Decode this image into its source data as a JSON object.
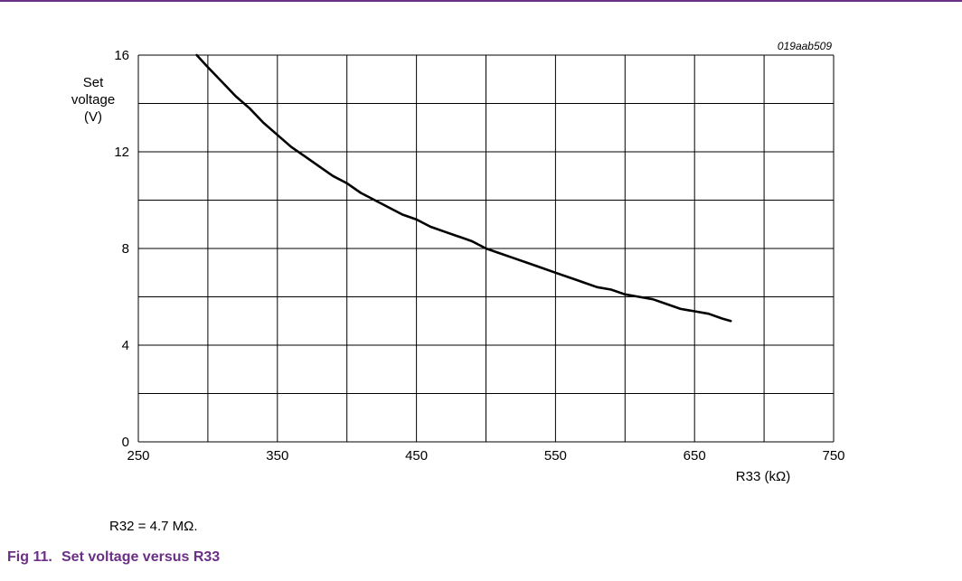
{
  "chart_data": {
    "type": "line",
    "figure_id": "019aab509",
    "ylabel": [
      "Set",
      "voltage",
      "(V)"
    ],
    "xlabel": "R33 (kΩ)",
    "xlim": [
      250,
      750
    ],
    "ylim": [
      0,
      16
    ],
    "x_ticks": [
      250,
      350,
      450,
      550,
      650,
      750
    ],
    "y_ticks": [
      0,
      4,
      8,
      12,
      16
    ],
    "x_minor_grid_step": 50,
    "y_minor_grid_step": 2,
    "grid": true,
    "series": [
      {
        "x": [
          292,
          300,
          310,
          320,
          330,
          340,
          350,
          360,
          370,
          380,
          390,
          400,
          410,
          420,
          430,
          440,
          450,
          460,
          470,
          480,
          490,
          500,
          510,
          520,
          530,
          540,
          550,
          560,
          570,
          580,
          590,
          600,
          610,
          620,
          630,
          640,
          650,
          660,
          670,
          676
        ],
        "y": [
          16.0,
          15.5,
          14.9,
          14.3,
          13.8,
          13.2,
          12.7,
          12.2,
          11.8,
          11.4,
          11.0,
          10.7,
          10.3,
          10.0,
          9.7,
          9.4,
          9.2,
          8.9,
          8.7,
          8.5,
          8.3,
          8.0,
          7.8,
          7.6,
          7.4,
          7.2,
          7.0,
          6.8,
          6.6,
          6.4,
          6.3,
          6.1,
          6.0,
          5.9,
          5.7,
          5.5,
          5.4,
          5.3,
          5.1,
          5.0
        ]
      }
    ]
  },
  "note": "R32 = 4.7 MΩ.",
  "caption": {
    "number": "Fig 11.",
    "title": "Set voltage versus R33"
  },
  "colors": {
    "caption": "#6b2f86",
    "frame": "#6b2f86",
    "grid": "#000000",
    "line": "#000000"
  }
}
